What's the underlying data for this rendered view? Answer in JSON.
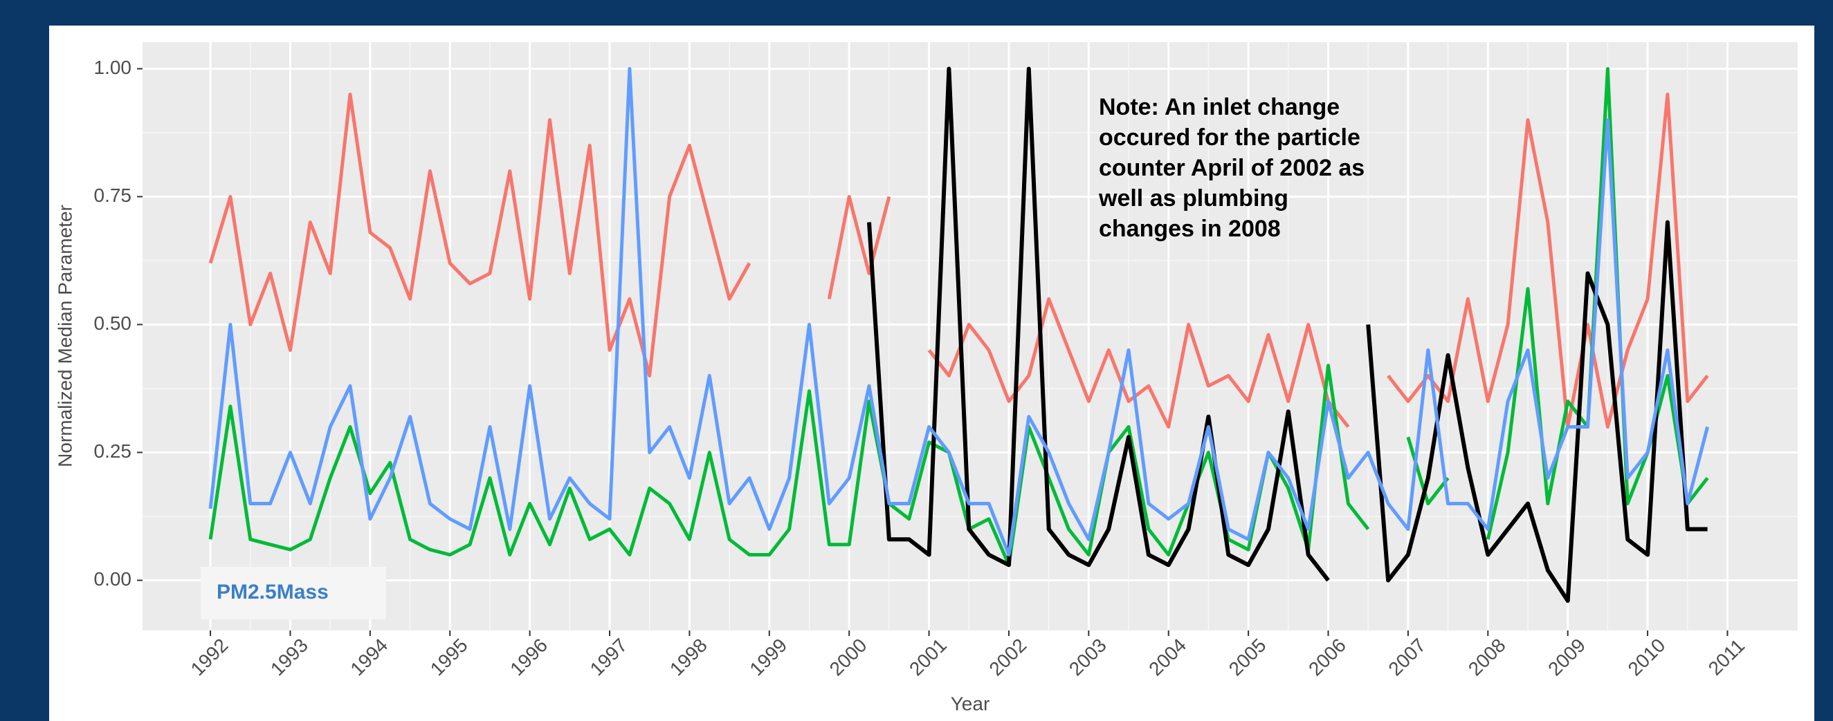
{
  "chart_data": {
    "type": "line",
    "x_label": "Year",
    "y_label": "Normalized Median Parameter",
    "annotation": [
      "Note: An inlet change",
      "occured for the particle",
      "counter April of 2002 as",
      "well as  plumbing",
      "changes in 2008"
    ],
    "x": [
      1992,
      1992.25,
      1992.5,
      1992.75,
      1993,
      1993.25,
      1993.5,
      1993.75,
      1994,
      1994.25,
      1994.5,
      1994.75,
      1995,
      1995.25,
      1995.5,
      1995.75,
      1996,
      1996.25,
      1996.5,
      1996.75,
      1997,
      1997.25,
      1997.5,
      1997.75,
      1998,
      1998.25,
      1998.5,
      1998.75,
      1999,
      1999.25,
      1999.5,
      1999.75,
      2000,
      2000.25,
      2000.5,
      2000.75,
      2001,
      2001.25,
      2001.5,
      2001.75,
      2002,
      2002.25,
      2002.5,
      2002.75,
      2003,
      2003.25,
      2003.5,
      2003.75,
      2004,
      2004.25,
      2004.5,
      2004.75,
      2005,
      2005.25,
      2005.5,
      2005.75,
      2006,
      2006.25,
      2006.5,
      2006.75,
      2007,
      2007.25,
      2007.5,
      2007.75,
      2008,
      2008.25,
      2008.5,
      2008.75,
      2009,
      2009.25,
      2009.5,
      2009.75,
      2010,
      2010.25,
      2010.5,
      2010.75
    ],
    "series": [
      {
        "color": "#f8766d",
        "values": [
          0.62,
          0.75,
          0.5,
          0.6,
          0.45,
          0.7,
          0.6,
          0.95,
          0.68,
          0.65,
          0.55,
          0.8,
          0.62,
          0.58,
          0.6,
          0.8,
          0.55,
          0.9,
          0.6,
          0.85,
          0.45,
          0.55,
          0.4,
          0.75,
          0.85,
          0.7,
          0.55,
          0.62,
          null,
          null,
          null,
          0.55,
          0.75,
          0.6,
          0.75,
          null,
          0.45,
          0.4,
          0.5,
          0.45,
          0.35,
          0.4,
          0.55,
          0.45,
          0.35,
          0.45,
          0.35,
          0.38,
          0.3,
          0.5,
          0.38,
          0.4,
          0.35,
          0.48,
          0.35,
          0.5,
          0.35,
          0.3,
          null,
          0.4,
          0.35,
          0.4,
          0.35,
          0.55,
          0.35,
          0.5,
          0.9,
          0.7,
          0.3,
          0.5,
          0.3,
          0.45,
          0.55,
          0.95,
          0.35,
          0.4
        ]
      },
      {
        "color": "#00ba38",
        "values": [
          0.08,
          0.34,
          0.08,
          0.07,
          0.06,
          0.08,
          0.2,
          0.3,
          0.17,
          0.23,
          0.08,
          0.06,
          0.05,
          0.07,
          0.2,
          0.05,
          0.15,
          0.07,
          0.18,
          0.08,
          0.1,
          0.05,
          0.18,
          0.15,
          0.08,
          0.25,
          0.08,
          0.05,
          0.05,
          0.1,
          0.37,
          0.07,
          0.07,
          0.35,
          0.15,
          0.12,
          0.27,
          0.25,
          0.1,
          0.12,
          0.03,
          0.3,
          0.2,
          0.1,
          0.05,
          0.25,
          0.3,
          0.1,
          0.05,
          0.15,
          0.25,
          0.08,
          0.06,
          0.25,
          0.18,
          0.06,
          0.42,
          0.15,
          0.1,
          null,
          0.28,
          0.15,
          0.2,
          null,
          0.08,
          0.25,
          0.57,
          0.15,
          0.35,
          0.3,
          1.0,
          0.15,
          0.25,
          0.4,
          0.15,
          0.2
        ]
      },
      {
        "color": "#000000",
        "values": [
          null,
          null,
          null,
          null,
          null,
          null,
          null,
          null,
          null,
          null,
          null,
          null,
          null,
          null,
          null,
          null,
          null,
          null,
          null,
          null,
          null,
          null,
          null,
          null,
          null,
          null,
          null,
          null,
          null,
          null,
          null,
          null,
          null,
          0.7,
          0.08,
          0.08,
          0.05,
          1.0,
          0.1,
          0.05,
          0.03,
          1.0,
          0.1,
          0.05,
          0.03,
          0.1,
          0.28,
          0.05,
          0.03,
          0.1,
          0.32,
          0.05,
          0.03,
          0.1,
          0.33,
          0.05,
          0.0,
          null,
          0.5,
          0.0,
          0.05,
          0.2,
          0.44,
          0.22,
          0.05,
          0.1,
          0.15,
          0.02,
          -0.04,
          0.6,
          0.5,
          0.08,
          0.05,
          0.7,
          0.1,
          0.1
        ]
      },
      {
        "name": "PM2.5Mass",
        "color": "#619cff",
        "values": [
          0.14,
          0.5,
          0.15,
          0.15,
          0.25,
          0.15,
          0.3,
          0.38,
          0.12,
          0.2,
          0.32,
          0.15,
          0.12,
          0.1,
          0.3,
          0.1,
          0.38,
          0.12,
          0.2,
          0.15,
          0.12,
          1.0,
          0.25,
          0.3,
          0.2,
          0.4,
          0.15,
          0.2,
          0.1,
          0.2,
          0.5,
          0.15,
          0.2,
          0.38,
          0.15,
          0.15,
          0.3,
          0.25,
          0.15,
          0.15,
          0.05,
          0.32,
          0.25,
          0.15,
          0.08,
          0.25,
          0.45,
          0.15,
          0.12,
          0.15,
          0.3,
          0.1,
          0.08,
          0.25,
          0.2,
          0.1,
          0.35,
          0.2,
          0.25,
          0.15,
          0.1,
          0.45,
          0.15,
          0.15,
          0.1,
          0.35,
          0.45,
          0.2,
          0.3,
          0.3,
          0.9,
          0.2,
          0.25,
          0.45,
          0.15,
          0.3
        ]
      }
    ],
    "xlim": [
      1991.15,
      2011.88
    ],
    "ylim": [
      -0.098,
      1.052
    ],
    "xticks": [
      1992,
      1993,
      1994,
      1995,
      1996,
      1997,
      1998,
      1999,
      2000,
      2001,
      2002,
      2003,
      2004,
      2005,
      2006,
      2007,
      2008,
      2009,
      2010,
      2011
    ],
    "yticks": [
      {
        "value": 0,
        "label": "0.00"
      },
      {
        "value": 0.25,
        "label": "0.25"
      },
      {
        "value": 0.5,
        "label": "0.50"
      },
      {
        "value": 0.75,
        "label": "0.75"
      },
      {
        "value": 1,
        "label": "1.00"
      }
    ],
    "grid": true,
    "legend_position": "bottom-left"
  }
}
